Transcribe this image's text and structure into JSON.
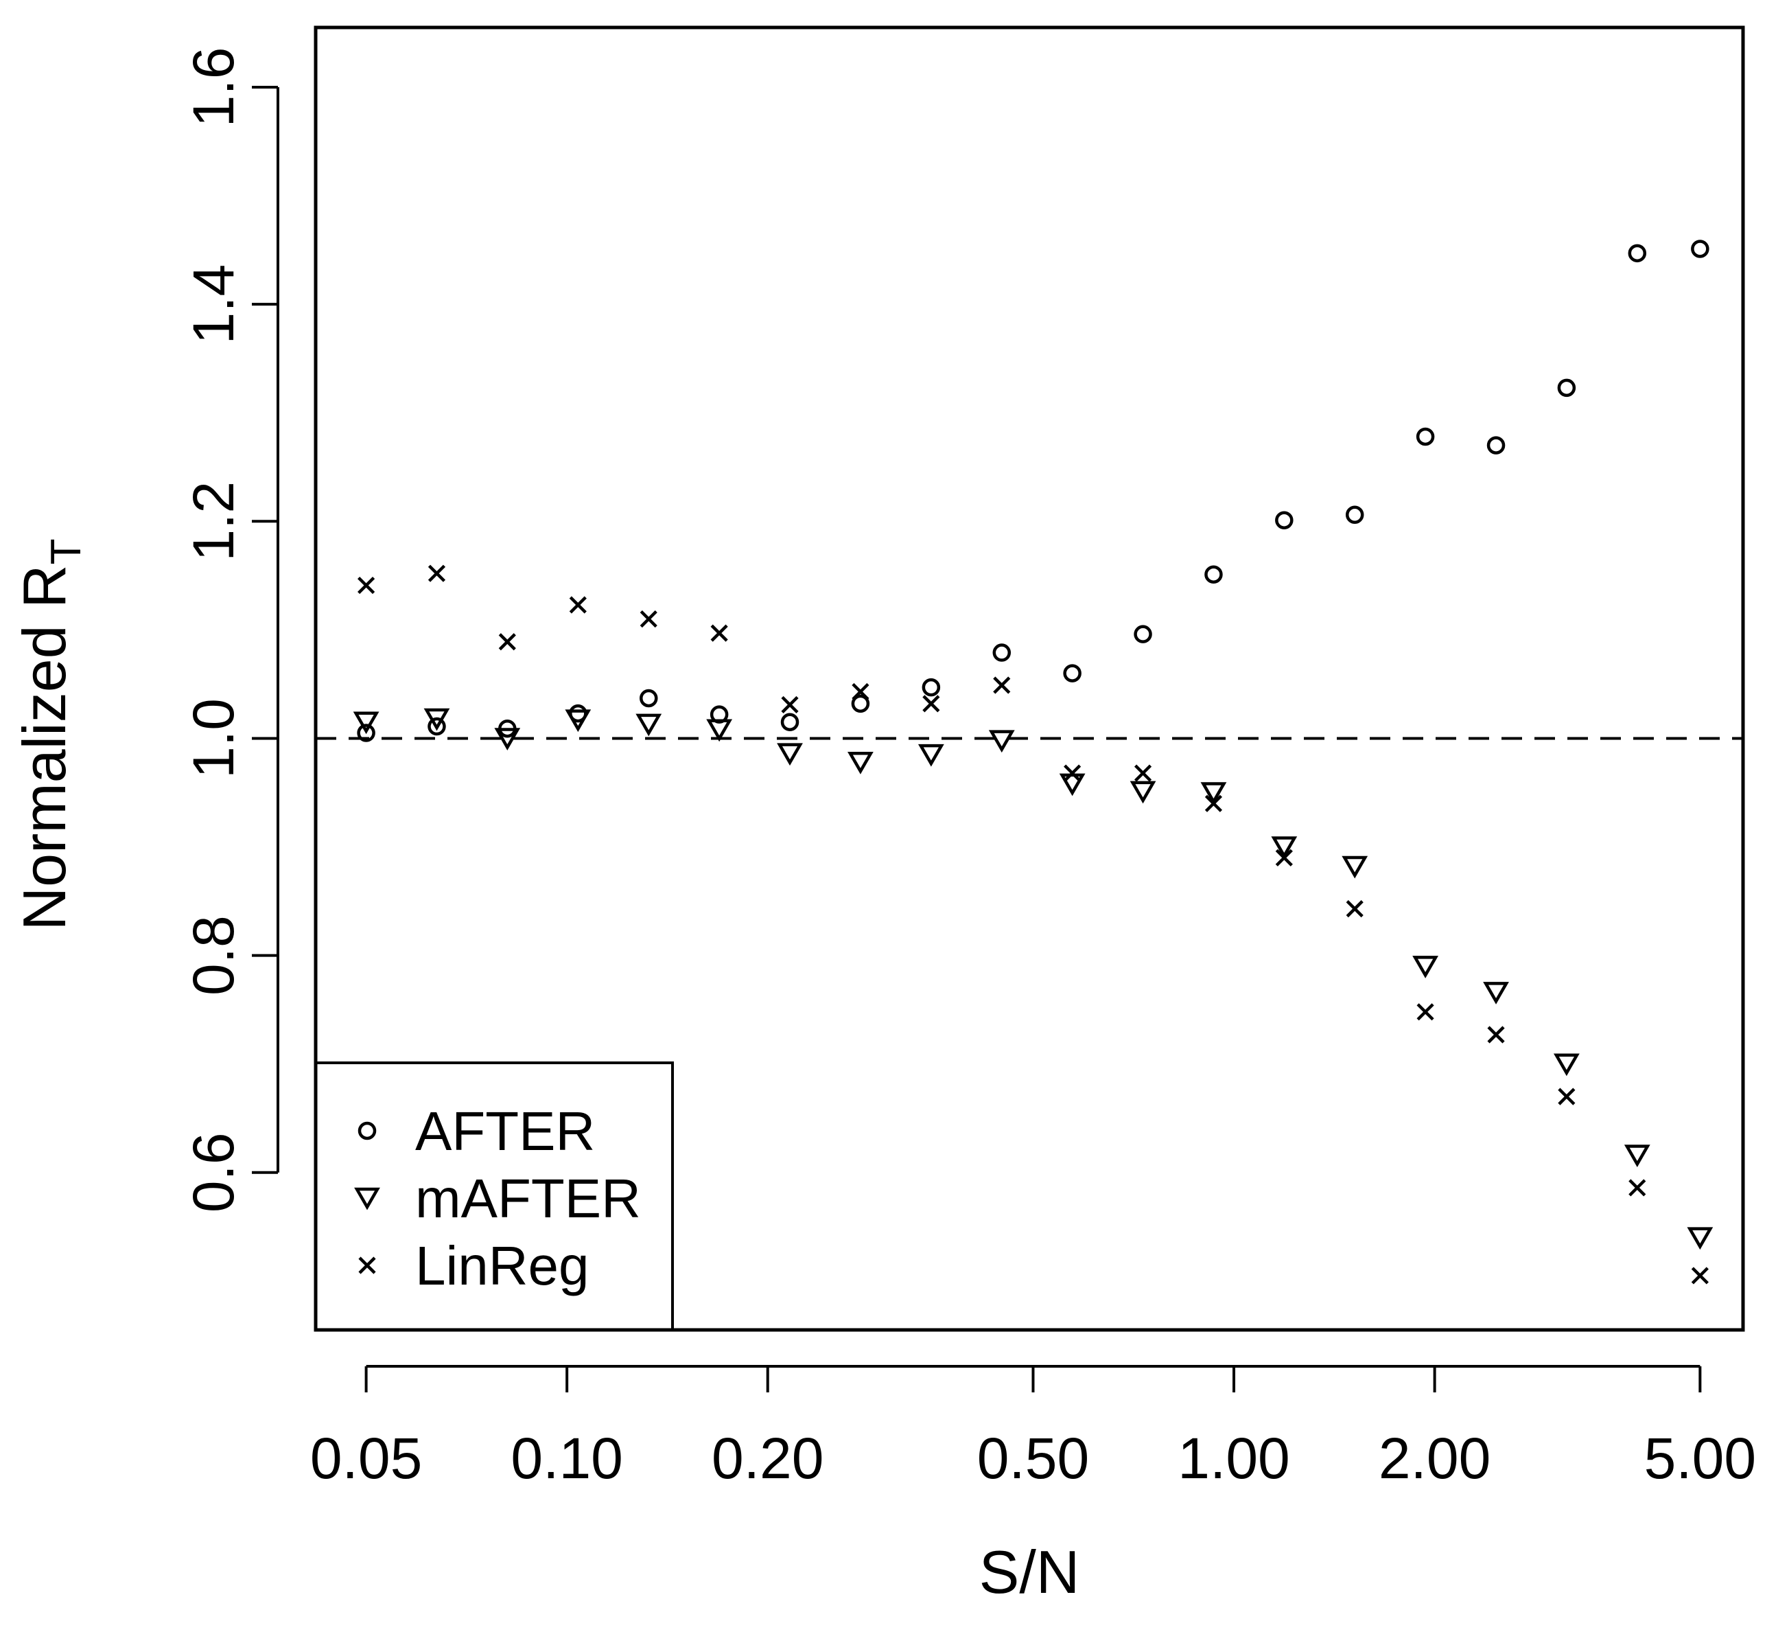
{
  "chart_data": {
    "type": "scatter",
    "xlabel": "S/N",
    "ylabel": "Normalized R",
    "ylabel_subscript": "T",
    "x_scale": "log",
    "xlim": [
      0.042,
      5.8
    ],
    "ylim": [
      0.455,
      1.655
    ],
    "x_ticks": [
      0.05,
      0.1,
      0.2,
      0.5,
      1.0,
      2.0,
      5.0
    ],
    "x_tick_labels": [
      "0.05",
      "0.10",
      "0.20",
      "0.50",
      "1.00",
      "2.00",
      "5.00"
    ],
    "y_ticks": [
      0.6,
      0.8,
      1.0,
      1.2,
      1.4,
      1.6
    ],
    "y_tick_labels": [
      "0.6",
      "0.8",
      "1.0",
      "1.2",
      "1.4",
      "1.6"
    ],
    "reference_line": {
      "y": 1.0,
      "style": "dashed"
    },
    "legend_position": "bottom-left",
    "x": [
      0.05,
      0.0638,
      0.0814,
      0.1039,
      0.1326,
      0.1692,
      0.2159,
      0.2755,
      0.3516,
      0.4487,
      0.5725,
      0.7306,
      0.9323,
      1.1896,
      1.518,
      1.937,
      2.472,
      3.154,
      4.025,
      5.0
    ],
    "series": [
      {
        "name": "AFTER",
        "marker": "circle",
        "values": [
          1.005,
          1.011,
          1.009,
          1.023,
          1.037,
          1.022,
          1.015,
          1.032,
          1.047,
          1.079,
          1.06,
          1.096,
          1.151,
          1.201,
          1.206,
          1.278,
          1.27,
          1.323,
          1.447,
          1.451
        ]
      },
      {
        "name": "mAFTER",
        "marker": "triangle-down",
        "values": [
          1.015,
          1.018,
          1.0,
          1.017,
          1.013,
          1.008,
          0.986,
          0.978,
          0.985,
          0.998,
          0.958,
          0.951,
          0.95,
          0.9,
          0.882,
          0.79,
          0.766,
          0.7,
          0.616,
          0.54
        ]
      },
      {
        "name": "LinReg",
        "marker": "x",
        "values": [
          1.141,
          1.152,
          1.089,
          1.123,
          1.11,
          1.097,
          1.031,
          1.043,
          1.032,
          1.049,
          0.968,
          0.968,
          0.94,
          0.89,
          0.843,
          0.748,
          0.727,
          0.67,
          0.586,
          0.505
        ]
      }
    ]
  }
}
